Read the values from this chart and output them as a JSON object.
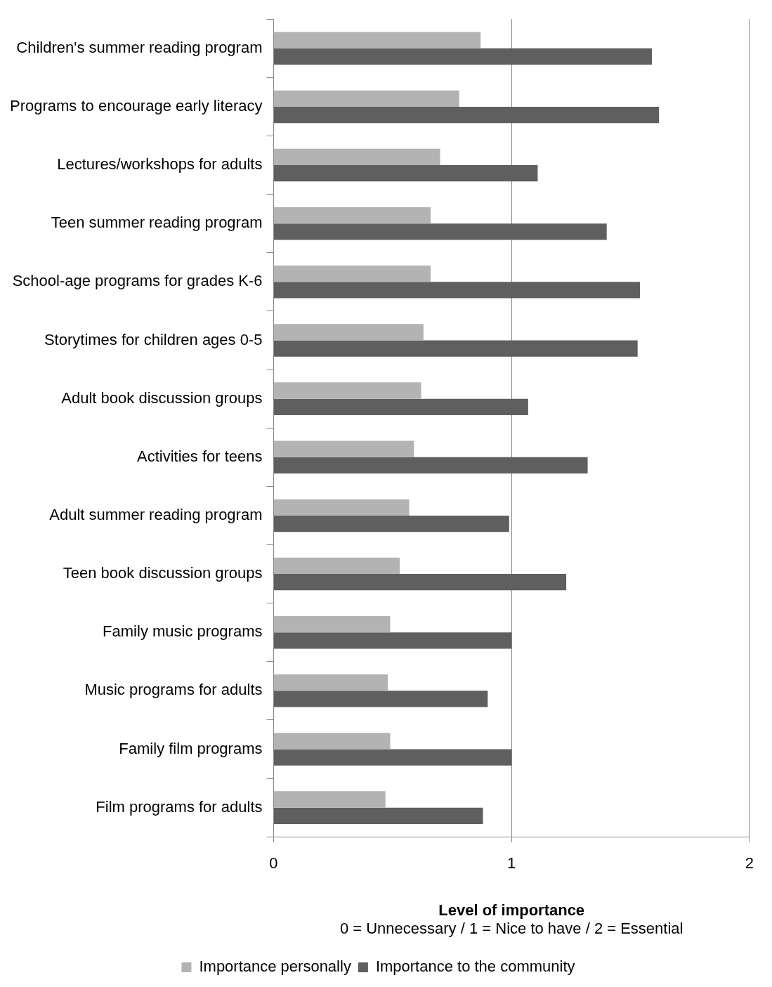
{
  "chart_data": {
    "type": "bar",
    "orientation": "horizontal",
    "xlabel": "Level of importance",
    "annotations": [
      "0 = Unnecessary / 1 = Nice to have / 2 = Essential"
    ],
    "categories": [
      "Children's summer reading program",
      "Programs to encourage early literacy",
      "Lectures/workshops for adults",
      "Teen summer reading program",
      "School-age programs for grades K-6",
      "Storytimes for children ages 0-5",
      "Adult book discussion groups",
      "Activities for teens",
      "Adult summer reading program",
      "Teen book discussion groups",
      "Family music programs",
      "Music programs for adults",
      "Family film programs",
      "Film programs for adults"
    ],
    "series": [
      {
        "name": "Importance personally",
        "color": "#b3b3b3",
        "values": [
          0.87,
          0.78,
          0.7,
          0.66,
          0.66,
          0.63,
          0.62,
          0.59,
          0.57,
          0.53,
          0.49,
          0.48,
          0.49,
          0.47
        ]
      },
      {
        "name": "Importance to the community",
        "color": "#5f5f5f",
        "values": [
          1.59,
          1.62,
          1.11,
          1.4,
          1.54,
          1.53,
          1.07,
          1.32,
          0.99,
          1.23,
          1.0,
          0.9,
          1.0,
          0.88
        ]
      }
    ],
    "xlim": [
      0,
      2
    ],
    "xticks": [
      0,
      1,
      2
    ],
    "grid": "x",
    "legend": "bottom"
  }
}
